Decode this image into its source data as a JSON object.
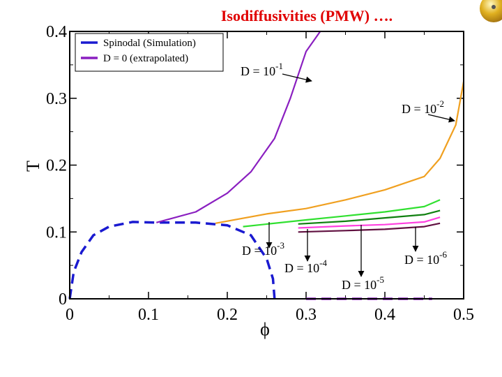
{
  "chart_data": {
    "type": "line",
    "title": "Isodiffusivities (PMW)  ….",
    "xlabel": "ϕ",
    "ylabel": "T",
    "xlim": [
      0,
      0.5
    ],
    "ylim": [
      0,
      0.4
    ],
    "xticks": [
      0,
      0.1,
      0.2,
      0.3,
      0.4,
      0.5
    ],
    "yticks": [
      0,
      0.1,
      0.2,
      0.3,
      0.4
    ],
    "legend": "upper left",
    "series": [
      {
        "name": "Spinodal (Simulation)",
        "color": "#1a1ad0",
        "dashed": true,
        "x": [
          0,
          0.005,
          0.015,
          0.03,
          0.05,
          0.08,
          0.11,
          0.16,
          0.2,
          0.23,
          0.25,
          0.258,
          0.26
        ],
        "y": [
          0,
          0.04,
          0.07,
          0.095,
          0.108,
          0.115,
          0.114,
          0.114,
          0.11,
          0.095,
          0.06,
          0.03,
          0
        ]
      },
      {
        "name": "D = 0 (extrapolated)",
        "color": "#8a1fc0",
        "dashed": true,
        "x": [
          0.3,
          0.46
        ],
        "y": [
          0,
          0
        ]
      },
      {
        "color": "#8a1fc0",
        "dashed": false,
        "x": [
          0.11,
          0.16,
          0.2,
          0.23,
          0.26,
          0.28,
          0.3,
          0.318
        ],
        "y": [
          0.114,
          0.13,
          0.158,
          0.19,
          0.24,
          0.3,
          0.37,
          0.4
        ]
      },
      {
        "color": "#f0a020",
        "dashed": false,
        "x": [
          0.185,
          0.25,
          0.3,
          0.35,
          0.4,
          0.45,
          0.47,
          0.49,
          0.5
        ],
        "y": [
          0.113,
          0.127,
          0.135,
          0.148,
          0.163,
          0.183,
          0.21,
          0.26,
          0.325
        ]
      },
      {
        "color": "#30e030",
        "dashed": false,
        "x": [
          0.22,
          0.3,
          0.35,
          0.4,
          0.45,
          0.47
        ],
        "y": [
          0.108,
          0.118,
          0.124,
          0.13,
          0.138,
          0.148
        ]
      },
      {
        "color": "#108010",
        "dashed": false,
        "x": [
          0.29,
          0.35,
          0.4,
          0.45,
          0.47
        ],
        "y": [
          0.112,
          0.116,
          0.121,
          0.126,
          0.132
        ]
      },
      {
        "color": "#ff40e0",
        "dashed": false,
        "x": [
          0.29,
          0.35,
          0.4,
          0.45,
          0.47
        ],
        "y": [
          0.106,
          0.109,
          0.111,
          0.115,
          0.122
        ]
      },
      {
        "color": "#601040",
        "dashed": false,
        "x": [
          0.29,
          0.35,
          0.4,
          0.45,
          0.47
        ],
        "y": [
          0.1,
          0.102,
          0.104,
          0.108,
          0.113
        ]
      }
    ],
    "annotations": [
      {
        "text": "D = 10",
        "exponent": "-1"
      },
      {
        "text": "D = 10",
        "exponent": "-2"
      },
      {
        "text": "D = 10",
        "exponent": "-3"
      },
      {
        "text": "D = 10",
        "exponent": "-4"
      },
      {
        "text": "D = 10",
        "exponent": "-5"
      },
      {
        "text": "D = 10",
        "exponent": "-6"
      }
    ]
  }
}
